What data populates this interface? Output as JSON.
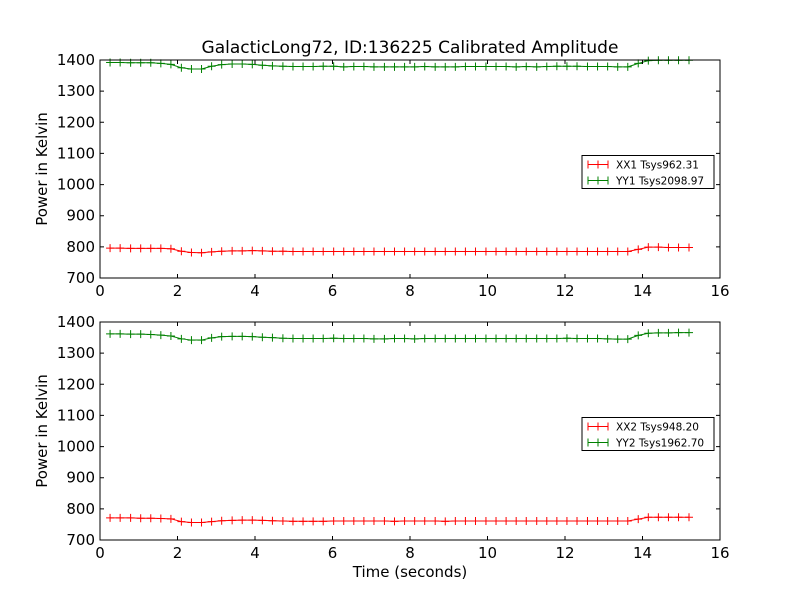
{
  "chart_data": {
    "type": "line",
    "title": "GalacticLong72, ID:136225 Calibrated Amplitude",
    "xlabel": "Time (seconds)",
    "ylabel": "Power in Kelvin",
    "xlim": [
      0,
      16
    ],
    "ylim": [
      700,
      1400
    ],
    "xticks": [
      "0",
      "2",
      "4",
      "6",
      "8",
      "10",
      "12",
      "14",
      "16"
    ],
    "yticks": [
      "700",
      "800",
      "900",
      "1000",
      "1100",
      "1200",
      "1300",
      "1400"
    ],
    "x": [
      0.26,
      0.52,
      0.79,
      1.05,
      1.31,
      1.57,
      1.83,
      2.1,
      2.36,
      2.62,
      2.88,
      3.14,
      3.41,
      3.67,
      3.93,
      4.19,
      4.45,
      4.72,
      4.98,
      5.24,
      5.5,
      5.76,
      6.03,
      6.29,
      6.55,
      6.81,
      7.07,
      7.34,
      7.6,
      7.86,
      8.12,
      8.38,
      8.65,
      8.91,
      9.17,
      9.43,
      9.69,
      9.96,
      10.22,
      10.48,
      10.74,
      11.0,
      11.27,
      11.53,
      11.79,
      12.05,
      12.31,
      12.58,
      12.84,
      13.1,
      13.36,
      13.62,
      13.89,
      14.15,
      14.41,
      14.67,
      14.93,
      15.2
    ],
    "panels": [
      {
        "ylabel": "Power in Kelvin",
        "legend_position": "center-right",
        "series": [
          {
            "name": "XX1 Tsys962.31",
            "color": "#ff0000",
            "values": [
              796,
              796,
              795,
              795,
              795,
              795,
              794,
              786,
              782,
              781,
              784,
              786,
              787,
              787,
              788,
              787,
              786,
              786,
              785,
              785,
              785,
              785,
              785,
              785,
              785,
              785,
              785,
              785,
              785,
              785,
              785,
              785,
              785,
              785,
              785,
              785,
              785,
              785,
              785,
              785,
              785,
              785,
              785,
              785,
              785,
              785,
              785,
              785,
              785,
              785,
              785,
              785,
              792,
              799,
              799,
              798,
              798,
              798
            ]
          },
          {
            "name": "YY1 Tsys2098.97",
            "color": "#008000",
            "values": [
              1392,
              1392,
              1391,
              1391,
              1391,
              1389,
              1386,
              1375,
              1371,
              1371,
              1380,
              1385,
              1387,
              1387,
              1386,
              1383,
              1381,
              1380,
              1379,
              1379,
              1379,
              1380,
              1380,
              1378,
              1379,
              1379,
              1378,
              1378,
              1378,
              1378,
              1378,
              1379,
              1378,
              1378,
              1378,
              1379,
              1379,
              1379,
              1379,
              1379,
              1378,
              1379,
              1378,
              1379,
              1380,
              1380,
              1380,
              1379,
              1379,
              1379,
              1378,
              1378,
              1389,
              1398,
              1399,
              1399,
              1399,
              1399
            ]
          }
        ]
      },
      {
        "ylabel": "Power in Kelvin",
        "xlabel": "Time (seconds)",
        "legend_position": "center-right",
        "series": [
          {
            "name": "XX2 Tsys948.20",
            "color": "#ff0000",
            "values": [
              771,
              771,
              771,
              770,
              770,
              769,
              768,
              759,
              756,
              756,
              759,
              762,
              763,
              764,
              764,
              763,
              762,
              761,
              760,
              760,
              760,
              760,
              761,
              761,
              761,
              761,
              761,
              761,
              760,
              761,
              761,
              761,
              761,
              760,
              761,
              761,
              761,
              761,
              761,
              761,
              761,
              761,
              761,
              761,
              761,
              761,
              761,
              761,
              761,
              761,
              761,
              761,
              767,
              773,
              773,
              773,
              773,
              773
            ]
          },
          {
            "name": "YY2 Tsys1962.70",
            "color": "#008000",
            "values": [
              1362,
              1362,
              1361,
              1361,
              1360,
              1358,
              1355,
              1346,
              1342,
              1342,
              1349,
              1353,
              1354,
              1354,
              1353,
              1351,
              1350,
              1348,
              1347,
              1347,
              1347,
              1347,
              1348,
              1347,
              1347,
              1347,
              1346,
              1346,
              1347,
              1347,
              1346,
              1347,
              1347,
              1347,
              1347,
              1347,
              1347,
              1347,
              1347,
              1347,
              1347,
              1347,
              1347,
              1347,
              1347,
              1348,
              1347,
              1347,
              1347,
              1346,
              1345,
              1345,
              1357,
              1364,
              1365,
              1365,
              1366,
              1366
            ]
          }
        ]
      }
    ]
  }
}
